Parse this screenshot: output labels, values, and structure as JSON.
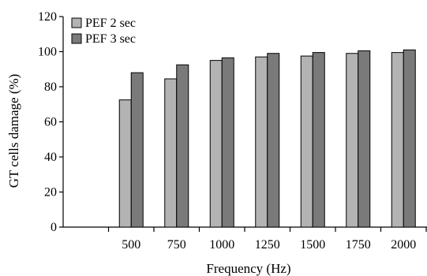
{
  "chart_data": {
    "type": "bar",
    "title": "",
    "xlabel": "Frequency (Hz)",
    "ylabel": "GT cells damage (%)",
    "ylim": [
      0,
      120
    ],
    "yticks": [
      0,
      20,
      40,
      60,
      80,
      100,
      120
    ],
    "categories": [
      "",
      "500",
      "750",
      "1000",
      "1250",
      "1500",
      "1750",
      "2000"
    ],
    "series": [
      {
        "name": "PEF 2 sec",
        "color": "#b3b3b3",
        "values": [
          null,
          72.5,
          84.5,
          95,
          97,
          97.5,
          99,
          99.5
        ]
      },
      {
        "name": "PEF 3 sec",
        "color": "#7a7a7a",
        "values": [
          null,
          88,
          92.5,
          96.5,
          99,
          99.5,
          100.5,
          101
        ]
      }
    ],
    "legend": "top-left",
    "grid": false
  }
}
